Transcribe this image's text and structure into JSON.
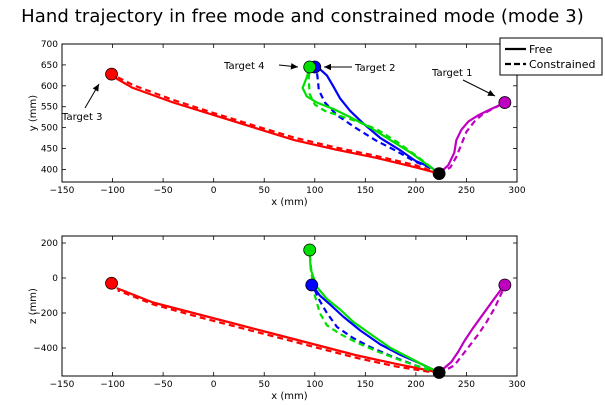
{
  "title": "Hand trajectory in free mode and constrained mode (mode 3)",
  "chart_data": [
    {
      "type": "line",
      "xlabel": "x (mm)",
      "ylabel": "y (mm)",
      "xlim": [
        -150,
        300
      ],
      "ylim": [
        370,
        700
      ],
      "xticks": [
        -150,
        -100,
        -50,
        0,
        50,
        100,
        150,
        200,
        250,
        300
      ],
      "yticks": [
        400,
        450,
        500,
        550,
        600,
        650,
        700
      ],
      "grid": false,
      "legend": {
        "position": "top-right",
        "entries": [
          {
            "label": "Free",
            "style": "solid"
          },
          {
            "label": "Constrained",
            "style": "dashed"
          }
        ]
      },
      "start_point": {
        "x": 223,
        "y": 390,
        "color": "#000000"
      },
      "targets": [
        {
          "x": 288,
          "y": 560,
          "color": "#c000c0",
          "label": "Target 1"
        },
        {
          "x": 100,
          "y": 645,
          "color": "#0000ff",
          "label": "Target 2"
        },
        {
          "x": -101,
          "y": 628,
          "color": "#ff0000",
          "label": "Target 3"
        },
        {
          "x": 95,
          "y": 645,
          "color": "#00e000",
          "label": "Target 4"
        }
      ],
      "series": [
        {
          "color": "#ff0000",
          "style": "solid",
          "points": [
            [
              223,
              390
            ],
            [
              200,
              405
            ],
            [
              160,
              428
            ],
            [
              120,
              448
            ],
            [
              80,
              470
            ],
            [
              40,
              500
            ],
            [
              0,
              530
            ],
            [
              -40,
              560
            ],
            [
              -80,
              595
            ],
            [
              -96,
              617
            ]
          ]
        },
        {
          "color": "#ff0000",
          "style": "dashed",
          "points": [
            [
              223,
              390
            ],
            [
              200,
              410
            ],
            [
              160,
              433
            ],
            [
              120,
              453
            ],
            [
              80,
              476
            ],
            [
              40,
              505
            ],
            [
              0,
              535
            ],
            [
              -40,
              566
            ],
            [
              -80,
              602
            ],
            [
              -96,
              622
            ]
          ]
        },
        {
          "color": "#0000ff",
          "style": "solid",
          "points": [
            [
              223,
              390
            ],
            [
              215,
              405
            ],
            [
              200,
              420
            ],
            [
              185,
              445
            ],
            [
              165,
              475
            ],
            [
              148,
              510
            ],
            [
              135,
              540
            ],
            [
              125,
              570
            ],
            [
              118,
              600
            ],
            [
              112,
              625
            ],
            [
              105,
              640
            ],
            [
              100,
              645
            ]
          ]
        },
        {
          "color": "#0000ff",
          "style": "dashed",
          "points": [
            [
              223,
              390
            ],
            [
              213,
              405
            ],
            [
              198,
              420
            ],
            [
              180,
              445
            ],
            [
              160,
              470
            ],
            [
              140,
              500
            ],
            [
              122,
              530
            ],
            [
              110,
              560
            ],
            [
              104,
              590
            ],
            [
              103,
              615
            ],
            [
              102,
              635
            ],
            [
              100,
              645
            ]
          ]
        },
        {
          "color": "#00e000",
          "style": "solid",
          "points": [
            [
              223,
              390
            ],
            [
              212,
              410
            ],
            [
              195,
              440
            ],
            [
              175,
              470
            ],
            [
              155,
              500
            ],
            [
              135,
              525
            ],
            [
              118,
              545
            ],
            [
              102,
              560
            ],
            [
              92,
              575
            ],
            [
              88,
              595
            ],
            [
              92,
              620
            ],
            [
              95,
              645
            ]
          ]
        },
        {
          "color": "#00e000",
          "style": "dashed",
          "points": [
            [
              223,
              390
            ],
            [
              215,
              405
            ],
            [
              202,
              430
            ],
            [
              182,
              465
            ],
            [
              162,
              495
            ],
            [
              142,
              515
            ],
            [
              125,
              528
            ],
            [
              110,
              540
            ],
            [
              100,
              555
            ],
            [
              95,
              580
            ],
            [
              94,
              615
            ],
            [
              95,
              645
            ]
          ]
        },
        {
          "color": "#c000c0",
          "style": "solid",
          "points": [
            [
              223,
              390
            ],
            [
              232,
              410
            ],
            [
              238,
              440
            ],
            [
              240,
              470
            ],
            [
              245,
              495
            ],
            [
              252,
              515
            ],
            [
              262,
              530
            ],
            [
              272,
              542
            ],
            [
              282,
              553
            ],
            [
              288,
              560
            ]
          ]
        },
        {
          "color": "#c000c0",
          "style": "dashed",
          "points": [
            [
              223,
              390
            ],
            [
              234,
              405
            ],
            [
              240,
              430
            ],
            [
              245,
              460
            ],
            [
              250,
              490
            ],
            [
              258,
              515
            ],
            [
              266,
              532
            ],
            [
              276,
              545
            ],
            [
              284,
              555
            ],
            [
              288,
              560
            ]
          ]
        }
      ]
    },
    {
      "type": "line",
      "xlabel": "x (mm)",
      "ylabel": "z (mm)",
      "xlim": [
        -150,
        300
      ],
      "ylim": [
        -560,
        240
      ],
      "xticks": [
        -150,
        -100,
        -50,
        0,
        50,
        100,
        150,
        200,
        250,
        300
      ],
      "yticks": [
        -400,
        -200,
        0,
        200
      ],
      "grid": false,
      "start_point": {
        "x": 223,
        "y": -540,
        "color": "#000000"
      },
      "targets": [
        {
          "x": 288,
          "y": -40,
          "color": "#c000c0"
        },
        {
          "x": 97,
          "y": -40,
          "color": "#0000ff"
        },
        {
          "x": -101,
          "y": -30,
          "color": "#ff0000"
        },
        {
          "x": 95,
          "y": 160,
          "color": "#00e000"
        }
      ],
      "series": [
        {
          "color": "#ff0000",
          "style": "solid",
          "points": [
            [
              223,
              -540
            ],
            [
              180,
              -490
            ],
            [
              140,
              -440
            ],
            [
              100,
              -380
            ],
            [
              60,
              -320
            ],
            [
              20,
              -260
            ],
            [
              -20,
              -200
            ],
            [
              -60,
              -140
            ],
            [
              -95,
              -60
            ]
          ]
        },
        {
          "color": "#ff0000",
          "style": "dashed",
          "points": [
            [
              223,
              -545
            ],
            [
              180,
              -505
            ],
            [
              140,
              -455
            ],
            [
              100,
              -395
            ],
            [
              60,
              -335
            ],
            [
              20,
              -275
            ],
            [
              -20,
              -215
            ],
            [
              -60,
              -150
            ],
            [
              -95,
              -70
            ]
          ]
        },
        {
          "color": "#0000ff",
          "style": "solid",
          "points": [
            [
              223,
              -540
            ],
            [
              205,
              -490
            ],
            [
              185,
              -440
            ],
            [
              165,
              -380
            ],
            [
              145,
              -300
            ],
            [
              128,
              -220
            ],
            [
              115,
              -150
            ],
            [
              105,
              -100
            ],
            [
              100,
              -60
            ]
          ]
        },
        {
          "color": "#0000ff",
          "style": "dashed",
          "points": [
            [
              223,
              -545
            ],
            [
              200,
              -500
            ],
            [
              175,
              -445
            ],
            [
              155,
              -395
            ],
            [
              137,
              -340
            ],
            [
              122,
              -280
            ],
            [
              112,
              -200
            ],
            [
              105,
              -130
            ],
            [
              100,
              -70
            ]
          ]
        },
        {
          "color": "#00e000",
          "style": "solid",
          "points": [
            [
              223,
              -540
            ],
            [
              210,
              -505
            ],
            [
              195,
              -460
            ],
            [
              175,
              -400
            ],
            [
              155,
              -320
            ],
            [
              138,
              -250
            ],
            [
              125,
              -180
            ],
            [
              112,
              -120
            ],
            [
              102,
              -50
            ],
            [
              96,
              50
            ],
            [
              95,
              140
            ]
          ]
        },
        {
          "color": "#00e000",
          "style": "dashed",
          "points": [
            [
              223,
              -545
            ],
            [
              205,
              -510
            ],
            [
              185,
              -470
            ],
            [
              162,
              -420
            ],
            [
              142,
              -370
            ],
            [
              125,
              -320
            ],
            [
              112,
              -270
            ],
            [
              105,
              -200
            ],
            [
              100,
              -100
            ],
            [
              97,
              20
            ],
            [
              95,
              140
            ]
          ]
        },
        {
          "color": "#c000c0",
          "style": "solid",
          "points": [
            [
              223,
              -540
            ],
            [
              235,
              -480
            ],
            [
              242,
              -420
            ],
            [
              248,
              -360
            ],
            [
              256,
              -290
            ],
            [
              266,
              -210
            ],
            [
              276,
              -130
            ],
            [
              285,
              -60
            ]
          ]
        },
        {
          "color": "#c000c0",
          "style": "dashed",
          "points": [
            [
              223,
              -545
            ],
            [
              238,
              -500
            ],
            [
              246,
              -440
            ],
            [
              254,
              -380
            ],
            [
              262,
              -320
            ],
            [
              270,
              -250
            ],
            [
              278,
              -170
            ],
            [
              286,
              -70
            ]
          ]
        }
      ]
    }
  ]
}
